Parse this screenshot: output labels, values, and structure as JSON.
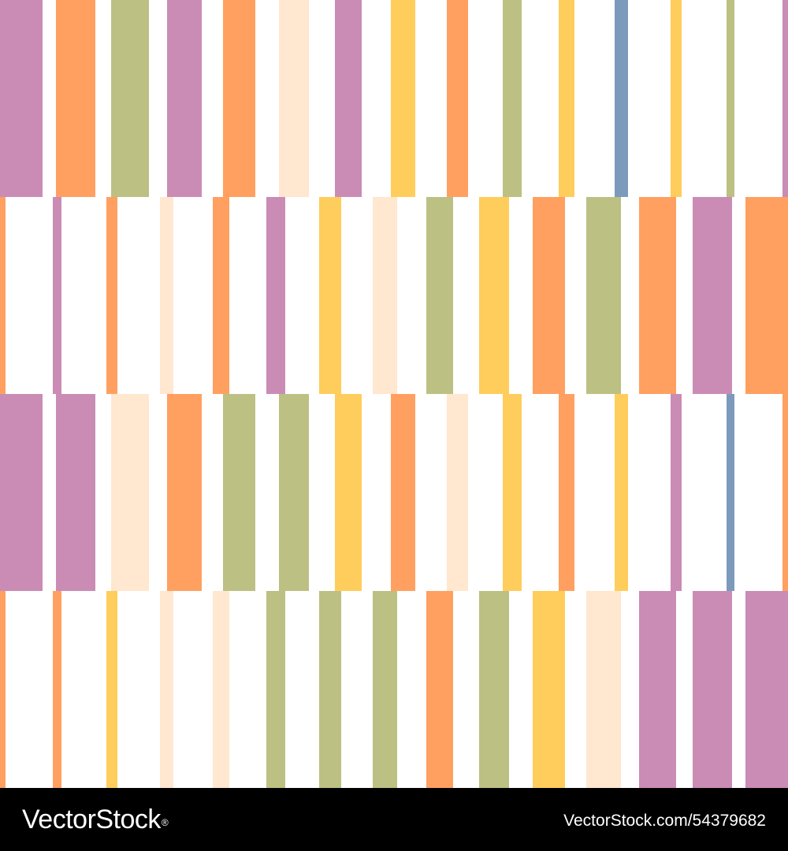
{
  "palette": {
    "purple": "#CA8CB5",
    "orange": "#FFA061",
    "green": "#BCC083",
    "cream": "#FFE7D0",
    "yellow": "#FFCD5B",
    "blue": "#7C9BBC"
  },
  "pattern": {
    "rows": [
      [
        "purple",
        "orange",
        "green",
        "purple",
        "orange",
        "cream",
        "purple",
        "yellow",
        "orange",
        "green",
        "yellow",
        "blue",
        "yellow",
        "green",
        "purple"
      ],
      [
        "orange",
        "purple",
        "orange",
        "cream",
        "orange",
        "purple",
        "yellow",
        "cream",
        "green",
        "yellow",
        "orange",
        "green",
        "orange",
        "purple",
        "orange"
      ],
      [
        "purple",
        "purple",
        "cream",
        "orange",
        "green",
        "green",
        "yellow",
        "orange",
        "cream",
        "yellow",
        "orange",
        "yellow",
        "purple",
        "blue",
        "orange"
      ],
      [
        "orange",
        "orange",
        "yellow",
        "cream",
        "cream",
        "green",
        "green",
        "green",
        "orange",
        "green",
        "yellow",
        "cream",
        "purple",
        "purple",
        "purple"
      ]
    ]
  },
  "footer": {
    "logo_text": "VectorStock",
    "logo_mark": "®",
    "image_id": "VectorStock.com/54379682"
  }
}
